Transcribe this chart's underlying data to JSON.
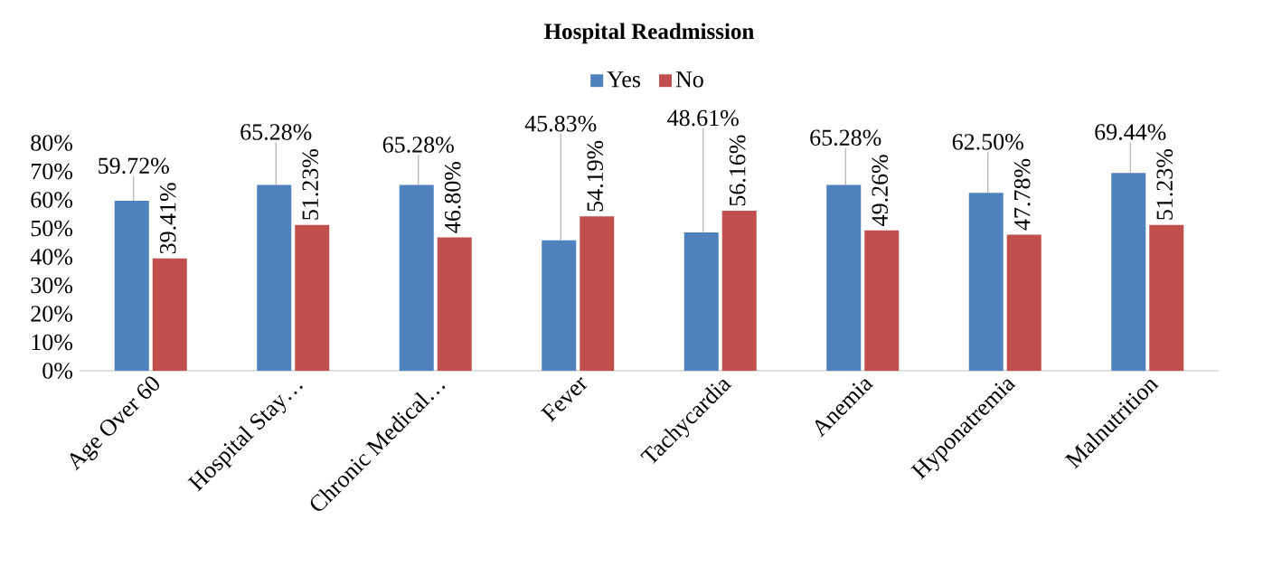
{
  "chart_data": {
    "type": "bar",
    "title": "Hospital Readmission",
    "categories": [
      "Age Over 60",
      "Hospital Stay…",
      "Chronic Medical…",
      "Fever",
      "Tachycardia",
      "Anemia",
      "Hyponatremia",
      "Malnutrition"
    ],
    "series": [
      {
        "name": "Yes",
        "color": "#4f81bd",
        "values": [
          59.72,
          65.28,
          65.28,
          45.83,
          48.61,
          65.28,
          62.5,
          69.44
        ],
        "value_labels": [
          "59.72%",
          "65.28%",
          "65.28%",
          "45.83%",
          "48.61%",
          "65.28%",
          "62.50%",
          "69.44%"
        ]
      },
      {
        "name": "No",
        "color": "#c0504d",
        "values": [
          39.41,
          51.23,
          46.8,
          54.19,
          56.16,
          49.26,
          47.78,
          51.23
        ],
        "value_labels": [
          "39.41%",
          "51.23%",
          "46.80%",
          "54.19%",
          "56.16%",
          "49.26%",
          "47.78%",
          "51.23%"
        ]
      }
    ],
    "ylim": [
      0,
      80
    ],
    "yticks": [
      {
        "value": 0,
        "label": "0%"
      },
      {
        "value": 10,
        "label": "10%"
      },
      {
        "value": 20,
        "label": "20%"
      },
      {
        "value": 30,
        "label": "30%"
      },
      {
        "value": 40,
        "label": "40%"
      },
      {
        "value": 50,
        "label": "50%"
      },
      {
        "value": 60,
        "label": "60%"
      },
      {
        "value": 70,
        "label": "70%"
      },
      {
        "value": 80,
        "label": "80%"
      }
    ],
    "legend": "top"
  }
}
